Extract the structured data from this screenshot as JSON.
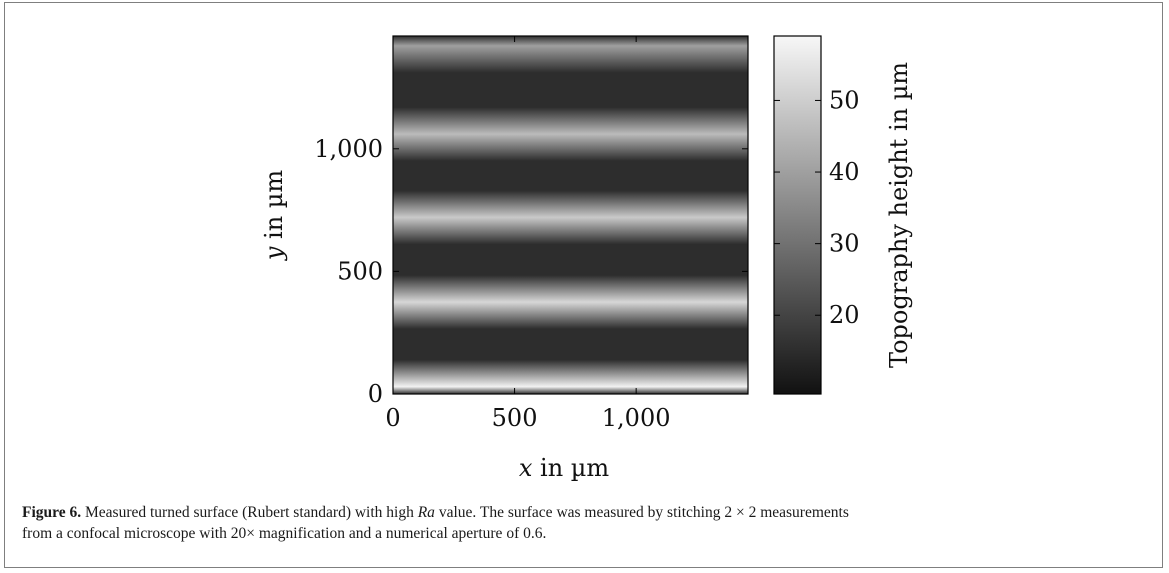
{
  "chart_data": {
    "type": "heatmap",
    "xlabel_var": "x",
    "xlabel_rest": " in µm",
    "ylabel_var": "y",
    "ylabel_rest": " in µm",
    "x_range": [
      0,
      1460
    ],
    "y_range": [
      0,
      1460
    ],
    "x_ticks": [
      0,
      500,
      1000
    ],
    "x_tick_labels": [
      "0",
      "500",
      "1,000"
    ],
    "y_ticks": [
      0,
      500,
      1000
    ],
    "y_tick_labels": [
      "0",
      "500",
      "1,000"
    ],
    "colorbar": {
      "label": "Topography height in µm",
      "range": [
        9,
        59
      ],
      "ticks": [
        20,
        30,
        40,
        50
      ],
      "tick_labels": [
        "20",
        "30",
        "40",
        "50"
      ],
      "colormap": "gray"
    },
    "grooves": [
      {
        "y": 30,
        "height": 58
      },
      {
        "y": 375,
        "height": 52
      },
      {
        "y": 720,
        "height": 49
      },
      {
        "y": 1060,
        "height": 46
      },
      {
        "y": 1420,
        "height": 40
      }
    ],
    "valley_height": 15
  },
  "caption": {
    "figure_ref": "Figure 6.",
    "text_before_ra": " Measured turned surface (Rubert standard) with high ",
    "ra": "Ra",
    "text_after_ra": " value. The surface was measured by stitching 2 × 2 measurements",
    "line2": "from a confocal microscope with 20× magnification and a numerical aperture of 0.6."
  }
}
